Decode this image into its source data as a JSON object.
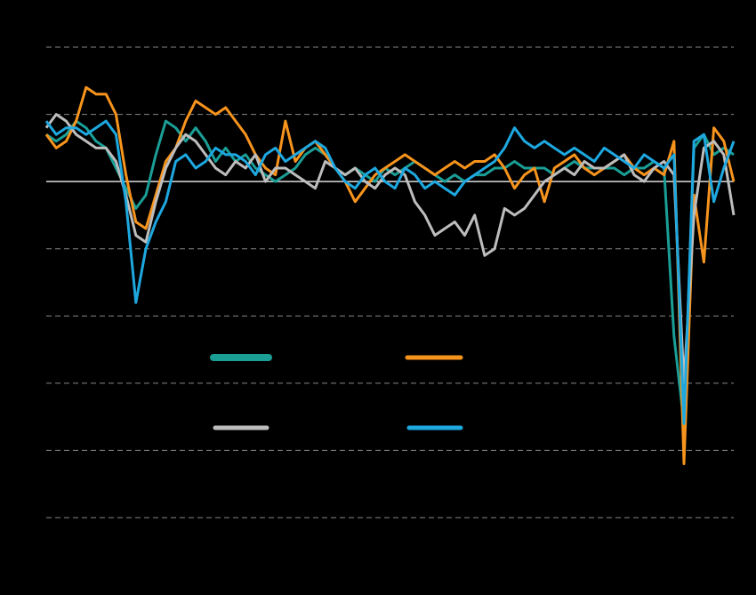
{
  "chart_data": {
    "type": "line",
    "ylim": [
      -50,
      20
    ],
    "yticks": [
      20,
      10,
      0,
      -10,
      -20,
      -30,
      -40,
      -50
    ],
    "grid": true,
    "series": [
      {
        "color": "#1a9e96",
        "values": [
          7,
          6,
          7,
          9,
          8,
          6,
          5,
          2,
          -1,
          -4,
          -2,
          4,
          9,
          8,
          6,
          8,
          6,
          3,
          5,
          3,
          4,
          2,
          1,
          0,
          1,
          2,
          4,
          5,
          4,
          2,
          1,
          2,
          1,
          0,
          2,
          1,
          2,
          3,
          2,
          1,
          0,
          1,
          0,
          1,
          1,
          2,
          2,
          3,
          2,
          2,
          2,
          1,
          2,
          3,
          2,
          2,
          2,
          2,
          1,
          2,
          2,
          3,
          2,
          -23,
          -36,
          5,
          7,
          4,
          5,
          4
        ]
      },
      {
        "color": "#f7941d",
        "values": [
          7,
          5,
          6,
          9,
          14,
          13,
          13,
          10,
          1,
          -6,
          -7,
          -2,
          3,
          5,
          9,
          12,
          11,
          10,
          11,
          9,
          7,
          4,
          2,
          1,
          9,
          3,
          5,
          6,
          4,
          2,
          0,
          -3,
          -1,
          1,
          2,
          3,
          4,
          3,
          2,
          1,
          2,
          3,
          2,
          3,
          3,
          4,
          2,
          -1,
          1,
          2,
          -3,
          2,
          3,
          4,
          2,
          1,
          2,
          3,
          4,
          2,
          1,
          2,
          1,
          6,
          -42,
          -2,
          -12,
          8,
          6,
          0
        ]
      },
      {
        "color": "#bdbdbd",
        "values": [
          8,
          10,
          9,
          7,
          6,
          5,
          5,
          3,
          -2,
          -8,
          -9,
          -3,
          2,
          5,
          7,
          6,
          4,
          2,
          1,
          3,
          2,
          4,
          0,
          2,
          2,
          1,
          0,
          -1,
          3,
          2,
          1,
          2,
          0,
          -1,
          1,
          2,
          1,
          -3,
          -5,
          -8,
          -7,
          -6,
          -8,
          -5,
          -11,
          -10,
          -4,
          -5,
          -4,
          -2,
          0,
          1,
          2,
          1,
          3,
          2,
          2,
          3,
          4,
          1,
          0,
          2,
          3,
          1,
          -30,
          -5,
          5,
          6,
          4,
          -5
        ]
      },
      {
        "color": "#1ea8e0",
        "values": [
          9,
          7,
          8,
          8,
          7,
          8,
          9,
          7,
          -3,
          -18,
          -10,
          -6,
          -3,
          3,
          4,
          2,
          3,
          5,
          4,
          4,
          3,
          1,
          4,
          5,
          3,
          4,
          5,
          6,
          5,
          2,
          0,
          -1,
          1,
          2,
          0,
          -1,
          2,
          1,
          -1,
          0,
          -1,
          -2,
          0,
          1,
          2,
          3,
          5,
          8,
          6,
          5,
          6,
          5,
          4,
          5,
          4,
          3,
          5,
          4,
          3,
          2,
          4,
          3,
          2,
          4,
          -36,
          6,
          7,
          -3,
          2,
          6
        ]
      }
    ]
  }
}
